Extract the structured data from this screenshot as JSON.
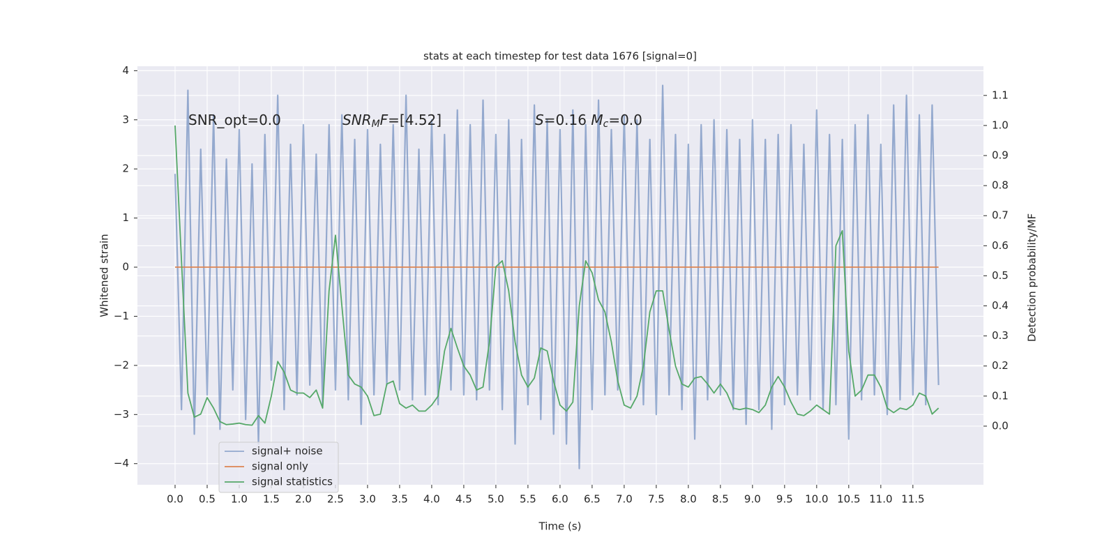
{
  "chart_data": {
    "type": "line",
    "title": "stats at each timestep for test data 1676 [signal=0]",
    "xlabel": "Time (s)",
    "ylabel": "Whitened strain",
    "y2label": "Detection probability/MF",
    "annotations": [
      [
        {
          "text": "SNR_opt=0.0",
          "style": "normal"
        }
      ],
      [
        {
          "text": "SNR",
          "style": "italic"
        },
        {
          "text": "M",
          "style": "sub"
        },
        {
          "text": "F",
          "style": "italic"
        },
        {
          "text": "=[4.52]",
          "style": "normal"
        }
      ],
      [
        {
          "text": "S",
          "style": "italic"
        },
        {
          "text": "=0.16   ",
          "style": "normal"
        },
        {
          "text": "M",
          "style": "italic"
        },
        {
          "text": "c",
          "style": "sub"
        },
        {
          "text": "=0.0",
          "style": "normal"
        }
      ]
    ],
    "x": [
      0.0,
      0.1,
      0.2,
      0.3,
      0.4,
      0.5,
      0.6,
      0.7,
      0.8,
      0.9,
      1.0,
      1.1,
      1.2,
      1.3,
      1.4,
      1.5,
      1.6,
      1.7,
      1.8,
      1.9,
      2.0,
      2.1,
      2.2,
      2.3,
      2.4,
      2.5,
      2.6,
      2.7,
      2.8,
      2.9,
      3.0,
      3.1,
      3.2,
      3.3,
      3.4,
      3.5,
      3.6,
      3.7,
      3.8,
      3.9,
      4.0,
      4.1,
      4.2,
      4.3,
      4.4,
      4.5,
      4.6,
      4.7,
      4.8,
      4.9,
      5.0,
      5.1,
      5.2,
      5.3,
      5.4,
      5.5,
      5.6,
      5.7,
      5.8,
      5.9,
      6.0,
      6.1,
      6.2,
      6.3,
      6.4,
      6.5,
      6.6,
      6.7,
      6.8,
      6.9,
      7.0,
      7.1,
      7.2,
      7.3,
      7.4,
      7.5,
      7.6,
      7.7,
      7.8,
      7.9,
      8.0,
      8.1,
      8.2,
      8.3,
      8.4,
      8.5,
      8.6,
      8.7,
      8.8,
      8.9,
      9.0,
      9.1,
      9.2,
      9.3,
      9.4,
      9.5,
      9.6,
      9.7,
      9.8,
      9.9,
      10.0,
      10.1,
      10.2,
      10.3,
      10.4,
      10.5,
      10.6,
      10.7,
      10.8,
      10.9,
      11.0,
      11.1,
      11.2,
      11.3,
      11.4,
      11.5,
      11.6,
      11.7,
      11.8,
      11.9
    ],
    "series": [
      {
        "name": "signal+ noise",
        "color": "#4c72b0",
        "values": [
          1.9,
          -2.9,
          3.6,
          -3.4,
          2.4,
          -2.6,
          3.1,
          -3.3,
          2.2,
          -2.5,
          2.8,
          -3.1,
          2.1,
          -3.6,
          2.7,
          -2.3,
          3.5,
          -2.9,
          2.5,
          -2.6,
          2.9,
          -2.4,
          2.3,
          -2.8,
          2.9,
          -2.5,
          3.1,
          -2.7,
          2.6,
          -3.2,
          2.8,
          -2.6,
          2.5,
          -2.4,
          2.9,
          -2.5,
          3.5,
          -2.7,
          2.4,
          -2.6,
          3.0,
          -2.8,
          2.7,
          -2.5,
          3.2,
          -2.6,
          2.9,
          -2.7,
          3.4,
          -2.5,
          2.7,
          -2.9,
          3.0,
          -3.6,
          2.6,
          -2.8,
          3.3,
          -3.1,
          3.0,
          -3.4,
          2.8,
          -3.6,
          3.2,
          -4.1,
          2.9,
          -2.9,
          3.4,
          -2.6,
          2.8,
          -2.5,
          3.1,
          -2.7,
          3.0,
          -2.8,
          2.6,
          -3.0,
          3.7,
          -2.6,
          2.7,
          -2.9,
          2.5,
          -3.5,
          2.9,
          -2.7,
          3.0,
          -2.6,
          2.8,
          -2.9,
          2.6,
          -3.2,
          3.0,
          -2.9,
          2.6,
          -3.3,
          2.7,
          -2.8,
          2.9,
          -2.6,
          2.5,
          -2.7,
          3.2,
          -2.9,
          2.7,
          -2.8,
          2.6,
          -3.5,
          2.9,
          -2.7,
          3.1,
          -2.6,
          2.5,
          -3.0,
          3.3,
          -2.7,
          3.5,
          -2.6,
          3.1,
          -2.8,
          3.3,
          -2.4
        ]
      },
      {
        "name": "signal only",
        "color": "#dd8452",
        "x": [
          0.0,
          11.9
        ],
        "values": [
          0,
          0
        ]
      },
      {
        "name": "signal statistics",
        "color": "#55a868",
        "axis": "y2",
        "values": [
          1.0,
          0.55,
          0.11,
          0.03,
          0.04,
          0.095,
          0.06,
          0.015,
          0.005,
          0.007,
          0.01,
          0.005,
          0.003,
          0.035,
          0.01,
          0.1,
          0.215,
          0.18,
          0.12,
          0.11,
          0.11,
          0.095,
          0.12,
          0.06,
          0.45,
          0.635,
          0.4,
          0.17,
          0.14,
          0.13,
          0.1,
          0.035,
          0.04,
          0.14,
          0.15,
          0.075,
          0.06,
          0.07,
          0.05,
          0.05,
          0.07,
          0.1,
          0.25,
          0.325,
          0.26,
          0.2,
          0.17,
          0.12,
          0.13,
          0.28,
          0.53,
          0.55,
          0.45,
          0.28,
          0.17,
          0.13,
          0.16,
          0.26,
          0.25,
          0.15,
          0.07,
          0.05,
          0.08,
          0.4,
          0.55,
          0.51,
          0.42,
          0.38,
          0.28,
          0.15,
          0.07,
          0.06,
          0.1,
          0.2,
          0.38,
          0.45,
          0.45,
          0.32,
          0.2,
          0.14,
          0.13,
          0.16,
          0.165,
          0.14,
          0.11,
          0.14,
          0.11,
          0.06,
          0.055,
          0.06,
          0.055,
          0.045,
          0.07,
          0.13,
          0.165,
          0.13,
          0.08,
          0.04,
          0.035,
          0.05,
          0.07,
          0.055,
          0.04,
          0.6,
          0.65,
          0.25,
          0.1,
          0.12,
          0.17,
          0.17,
          0.13,
          0.06,
          0.045,
          0.06,
          0.055,
          0.07,
          0.11,
          0.1,
          0.04,
          0.06
        ]
      }
    ],
    "xlim": [
      -0.587,
      12.6
    ],
    "xticks": [
      {
        "value": 0,
        "label": "0.0"
      },
      {
        "value": 0.5,
        "label": "0.5"
      },
      {
        "value": 1,
        "label": "1.0"
      },
      {
        "value": 1.5,
        "label": "1.5"
      },
      {
        "value": 2,
        "label": "2.0"
      },
      {
        "value": 2.5,
        "label": "2.5"
      },
      {
        "value": 3,
        "label": "3.0"
      },
      {
        "value": 3.5,
        "label": "3.5"
      },
      {
        "value": 4,
        "label": "4.0"
      },
      {
        "value": 4.5,
        "label": "4.5"
      },
      {
        "value": 5,
        "label": "5.0"
      },
      {
        "value": 5.5,
        "label": "5.5"
      },
      {
        "value": 6,
        "label": "6.0"
      },
      {
        "value": 6.5,
        "label": "6.5"
      },
      {
        "value": 7,
        "label": "7.0"
      },
      {
        "value": 7.5,
        "label": "7.5"
      },
      {
        "value": 8,
        "label": "8.0"
      },
      {
        "value": 8.5,
        "label": "8.5"
      },
      {
        "value": 9,
        "label": "9.0"
      },
      {
        "value": 9.5,
        "label": "9.5"
      },
      {
        "value": 10,
        "label": "10.0"
      },
      {
        "value": 10.5,
        "label": "10.5"
      },
      {
        "value": 11,
        "label": "11.0"
      },
      {
        "value": 11.5,
        "label": "11.5"
      }
    ],
    "ylim": [
      -4.43,
      4.09
    ],
    "yticks": [
      {
        "value": -4,
        "label": "−4"
      },
      {
        "value": -3,
        "label": "−3"
      },
      {
        "value": -2,
        "label": "−2"
      },
      {
        "value": -1,
        "label": "−1"
      },
      0,
      1,
      2,
      3,
      4
    ],
    "y2lim": [
      -0.195,
      1.197
    ],
    "y2ticks": [
      {
        "value": 0,
        "label": "0.0"
      },
      0.1,
      0.2,
      0.3,
      0.4,
      0.5,
      0.6,
      0.7,
      0.8,
      0.9,
      {
        "value": 1,
        "label": "1.0"
      },
      1.1
    ],
    "grid": true,
    "legend": "lower left",
    "background": "#eaeaf2"
  }
}
